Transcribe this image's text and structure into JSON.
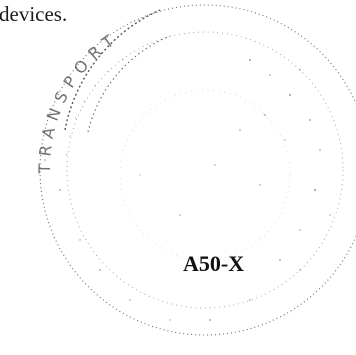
{
  "document": {
    "text_fragment": "devices.",
    "code": "A50-X"
  },
  "stamp": {
    "kind": "circular seal (faded, dotted)",
    "legible_lettering": "TRANSPORT...",
    "ink_color": "#3a3a3a"
  }
}
